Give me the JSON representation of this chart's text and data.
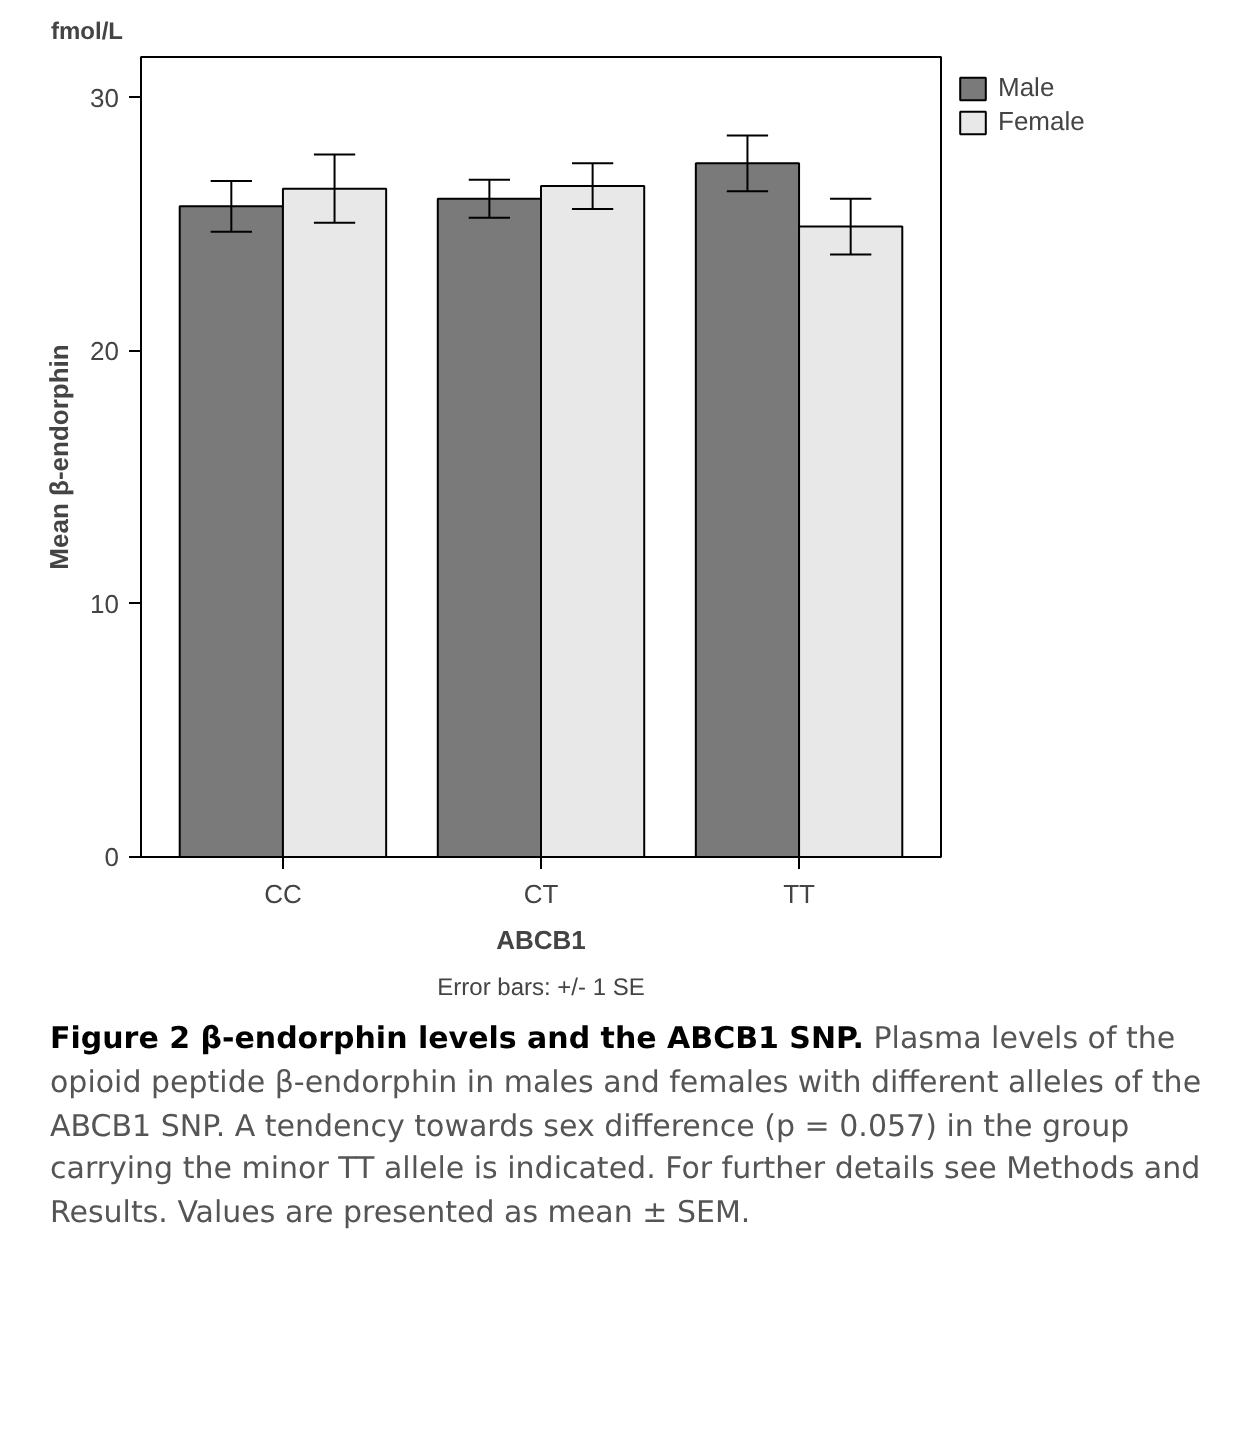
{
  "chart_data": {
    "type": "bar",
    "title": "Figure 2 β-endorphin levels and the ABCB1 SNP.",
    "categories": [
      "CC",
      "CT",
      "TT"
    ],
    "series": [
      {
        "name": "Male",
        "color": "#7a7a7a",
        "values": [
          25.7,
          26.0,
          27.4
        ],
        "errors": [
          1.0,
          0.75,
          1.1
        ]
      },
      {
        "name": "Female",
        "color": "#e8e8e8",
        "values": [
          26.4,
          26.5,
          24.9
        ],
        "errors": [
          1.35,
          0.9,
          1.1
        ]
      }
    ],
    "xlabel": "ABCB1",
    "ylabel": "Mean β-endorphin",
    "ylim": [
      0,
      31.6
    ],
    "yticks": [
      0,
      10,
      20,
      30
    ],
    "legend": "right",
    "annotations": [
      "fmol/L",
      "Error bars: +/- 1 SE",
      "Plasma levels of the opioid peptide β-endorphin in males and females with different alleles of the ABCB1 SNP. A tendency towards sex difference (p = 0.057) in the group carrying the minor TT allele is indicated. For further details see Methods and Results. Values are presented as mean ± SEM."
    ]
  }
}
